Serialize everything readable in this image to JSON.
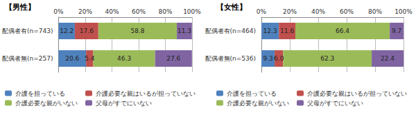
{
  "chart_data": [
    {
      "type": "bar",
      "title": "【男性】",
      "orientation": "horizontal",
      "stacked": true,
      "data_labels": true,
      "grid": true,
      "legend": "lower left",
      "categories": [
        "配偶者有(n=743)",
        "配偶者無(n=257)"
      ],
      "xlim": [
        0,
        100
      ],
      "xticks": [
        {
          "value": 0,
          "label": "0%"
        },
        {
          "value": 20,
          "label": "20%"
        },
        {
          "value": 40,
          "label": "40%"
        },
        {
          "value": 60,
          "label": "60%"
        },
        {
          "value": 80,
          "label": "80%"
        },
        {
          "value": 100,
          "label": "100%"
        }
      ],
      "series": [
        {
          "name": "介護を担っている",
          "color": "#4f81bd",
          "values": [
            12.2,
            20.6
          ]
        },
        {
          "name": "介護必要な親はいるが担っていない",
          "color": "#c0504d",
          "values": [
            17.6,
            5.4
          ]
        },
        {
          "name": "介護必要な親がいない",
          "color": "#9bbb59",
          "values": [
            58.8,
            46.3
          ]
        },
        {
          "name": "父母がすでにいない",
          "color": "#8064a2",
          "values": [
            11.3,
            27.6
          ]
        }
      ]
    },
    {
      "type": "bar",
      "title": "【女性】",
      "orientation": "horizontal",
      "stacked": true,
      "data_labels": true,
      "grid": true,
      "legend": "lower left",
      "categories": [
        "配偶者有(n=464)",
        "配偶者無(n=536)"
      ],
      "xlim": [
        0,
        100
      ],
      "xticks": [
        {
          "value": 0,
          "label": "0%"
        },
        {
          "value": 20,
          "label": "20%"
        },
        {
          "value": 40,
          "label": "40%"
        },
        {
          "value": 60,
          "label": "60%"
        },
        {
          "value": 80,
          "label": "80%"
        },
        {
          "value": 100,
          "label": "100%"
        }
      ],
      "series": [
        {
          "name": "介護を担っている",
          "color": "#4f81bd",
          "values": [
            12.3,
            9.3
          ]
        },
        {
          "name": "介護必要な親はいるが担っていない",
          "color": "#c0504d",
          "values": [
            11.6,
            6.0
          ],
          "value_labels": [
            "11.6",
            "6.0"
          ]
        },
        {
          "name": "介護必要な親がいない",
          "color": "#9bbb59",
          "values": [
            66.4,
            62.3
          ]
        },
        {
          "name": "父母がすでにいない",
          "color": "#8064a2",
          "values": [
            9.7,
            22.4
          ]
        }
      ]
    }
  ]
}
